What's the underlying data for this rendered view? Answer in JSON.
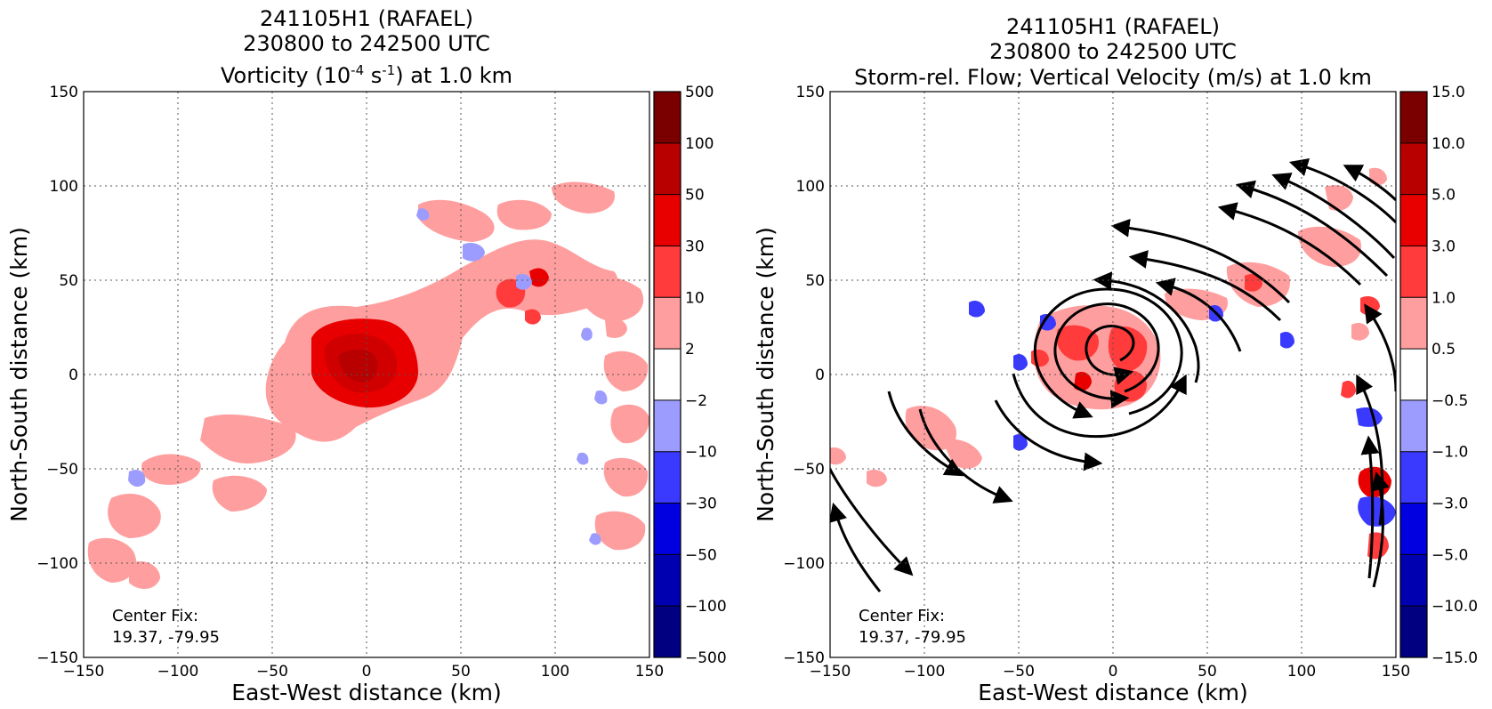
{
  "chart_data": [
    {
      "type": "heatmap",
      "panel": "left",
      "title_lines": [
        "241105H1 (RAFAEL)",
        "230800 to 242500 UTC",
        "Vorticity (10^-4 s^-1) at 1.0 km"
      ],
      "title_l1": "241105H1 (RAFAEL)",
      "title_l2": "230800 to 242500 UTC",
      "title_l3_a": "Vorticity (10",
      "title_l3_sup1": "-4",
      "title_l3_b": " s",
      "title_l3_sup2": "-1",
      "title_l3_c": ") at 1.0 km",
      "xlabel": "East-West distance (km)",
      "ylabel": "North-South distance (km)",
      "xlim": [
        -150,
        150
      ],
      "ylim": [
        -150,
        150
      ],
      "xticks": [
        "−150",
        "−100",
        "−50",
        "0",
        "50",
        "100",
        "150"
      ],
      "yticks": [
        "150",
        "100",
        "50",
        "0",
        "−50",
        "−100",
        "−150"
      ],
      "grid": true,
      "colorbar_levels": [
        "500",
        "100",
        "50",
        "30",
        "10",
        "2",
        "−2",
        "−10",
        "−30",
        "−50",
        "−100",
        "−500"
      ],
      "colorbar_colors": [
        "#7a0000",
        "#b80000",
        "#e80000",
        "#ff3b3b",
        "#ff9e9e",
        "#ffffff",
        "#9c9cff",
        "#3a3aff",
        "#0000e0",
        "#0000b0",
        "#000080"
      ],
      "center_fix_label": "Center Fix:",
      "center_fix_coords": "19.37, -79.95"
    },
    {
      "type": "heatmap",
      "panel": "right",
      "title_l1": "241105H1 (RAFAEL)",
      "title_l2": "230800 to 242500 UTC",
      "title_l3": "Storm-rel. Flow; Vertical Velocity (m/s) at 1.0 km",
      "xlabel": "East-West distance (km)",
      "ylabel": "North-South distance (km)",
      "xlim": [
        -150,
        150
      ],
      "ylim": [
        -150,
        150
      ],
      "xticks": [
        "−150",
        "−100",
        "−50",
        "0",
        "50",
        "100",
        "150"
      ],
      "yticks": [
        "150",
        "100",
        "50",
        "0",
        "−50",
        "−100",
        "−150"
      ],
      "grid": true,
      "overlay": "streamlines",
      "colorbar_levels": [
        "15.0",
        "10.0",
        "5.0",
        "3.0",
        "1.0",
        "0.5",
        "−0.5",
        "−1.0",
        "−3.0",
        "−5.0",
        "−10.0",
        "−15.0"
      ],
      "colorbar_colors": [
        "#7a0000",
        "#b80000",
        "#e80000",
        "#ff3b3b",
        "#ff9e9e",
        "#ffffff",
        "#9c9cff",
        "#3a3aff",
        "#0000e0",
        "#0000b0",
        "#000080"
      ],
      "center_fix_label": "Center Fix:",
      "center_fix_coords": "19.37, -79.95"
    }
  ]
}
